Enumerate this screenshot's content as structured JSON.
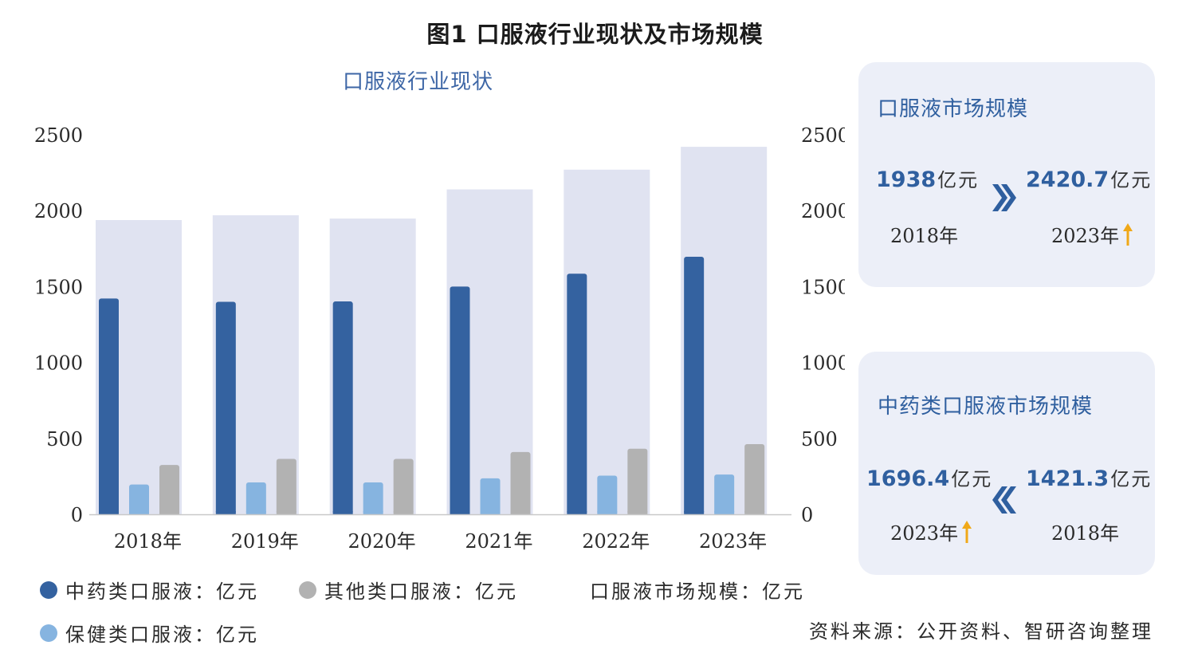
{
  "figure_title": "图1  口服液行业现状及市场规模",
  "chart_data": {
    "type": "bar",
    "title": "口服液行业现状",
    "categories": [
      "2018年",
      "2019年",
      "2020年",
      "2021年",
      "2022年",
      "2023年"
    ],
    "y_ticks": [
      "0",
      "500",
      "1000",
      "1500",
      "2000",
      "2500"
    ],
    "ylim": [
      0,
      2500
    ],
    "secondary_ylim": [
      0,
      2500
    ],
    "series": [
      {
        "name": "中药类口服液：亿元",
        "color": "#3462a0",
        "values": [
          1421.3,
          1400,
          1402,
          1500,
          1585,
          1696.4
        ]
      },
      {
        "name": "保健类口服液：亿元",
        "color": "#86b4e0",
        "values": [
          196,
          210,
          210,
          237,
          255,
          262
        ]
      },
      {
        "name": "其他类口服液：亿元",
        "color": "#b2b2b2",
        "values": [
          325,
          365,
          365,
          410,
          432,
          462
        ]
      },
      {
        "name": "口服液市场规模：亿元",
        "color": "#e0e3f1",
        "values": [
          1938,
          1970,
          1948,
          2140,
          2270,
          2420.7
        ]
      }
    ]
  },
  "legend": [
    {
      "label": "中药类口服液：亿元",
      "color": "#3462a0"
    },
    {
      "label": "其他类口服液：亿元",
      "color": "#b2b2b2"
    },
    {
      "label": "口服液市场规模：亿元",
      "color": "#ffffff"
    },
    {
      "label": "保健类口服液：亿元",
      "color": "#86b4e0"
    }
  ],
  "source": "资料来源：公开资料、智研咨询整理",
  "panel_market": {
    "title": "口服液市场规模",
    "from_value": "1938",
    "from_unit": "亿元",
    "from_year": "2018年",
    "to_value": "2420.7",
    "to_unit": "亿元",
    "to_year": "2023年",
    "arrow_icon": "double-chevron-right-icon",
    "trend_icon": "up-arrow-icon"
  },
  "panel_tcm": {
    "title": "中药类口服液市场规模",
    "left_value": "1696.4",
    "left_unit": "亿元",
    "left_year": "2023年",
    "right_value": "1421.3",
    "right_unit": "亿元",
    "right_year": "2018年",
    "arrow_icon": "double-chevron-left-icon",
    "trend_icon": "up-arrow-icon"
  },
  "colors": {
    "accent": "#2f5f9f",
    "trend": "#f0a818",
    "panel_bg": "#eceff8"
  }
}
